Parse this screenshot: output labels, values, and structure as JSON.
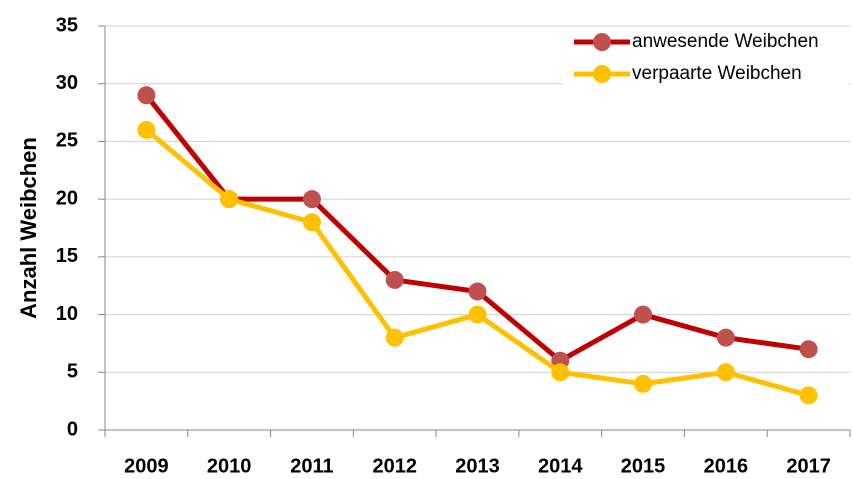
{
  "chart_data": {
    "type": "line",
    "y_label": "Anzahl Weibchen",
    "categories": [
      "2009",
      "2010",
      "2011",
      "2012",
      "2013",
      "2014",
      "2015",
      "2016",
      "2017"
    ],
    "series": [
      {
        "name": "anwesende Weibchen",
        "color": "#c00000",
        "marker_color": "#c0504d",
        "values": [
          29,
          20,
          20,
          13,
          12,
          6,
          10,
          8,
          7
        ]
      },
      {
        "name": "verpaarte Weibchen",
        "color": "#ffc000",
        "marker_color": "#ffc000",
        "values": [
          26,
          20,
          18,
          8,
          10,
          5,
          4,
          5,
          3
        ]
      }
    ],
    "ylim": [
      0,
      35
    ],
    "yticks": [
      0,
      5,
      10,
      15,
      20,
      25,
      30,
      35
    ],
    "grid": true,
    "legend": "top-right"
  }
}
